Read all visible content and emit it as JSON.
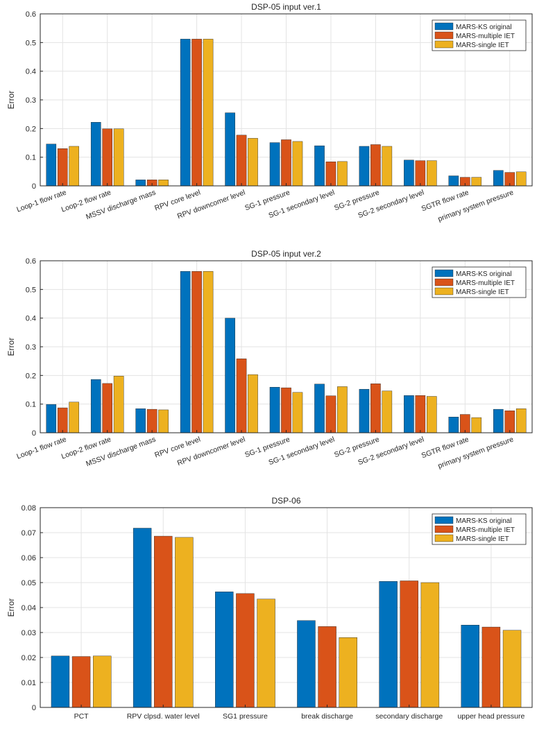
{
  "chart_data": [
    {
      "type": "bar",
      "title": "DSP-05 input ver.1",
      "xlabel": "",
      "ylabel": "Error",
      "ylim": [
        0,
        0.6
      ],
      "yticks": [
        "0",
        "0.1",
        "0.2",
        "0.3",
        "0.4",
        "0.5",
        "0.6"
      ],
      "grid": true,
      "legend_position": "top-right",
      "categories": [
        "Loop-1 flow rate",
        "Loop-2 flow rate",
        "MSSV discharge mass",
        "RPV core level",
        "RPV downcomer level",
        "SG-1 pressure",
        "SG-1 secondary level",
        "SG-2 pressure",
        "SG-2 secondary level",
        "SGTR flow rate",
        "primary system pressure"
      ],
      "series": [
        {
          "name": "MARS-KS original",
          "color": "#0072BD",
          "values": [
            0.146,
            0.222,
            0.021,
            0.512,
            0.255,
            0.151,
            0.14,
            0.138,
            0.09,
            0.035,
            0.054
          ]
        },
        {
          "name": "MARS-multiple IET",
          "color": "#D95319",
          "values": [
            0.13,
            0.199,
            0.021,
            0.512,
            0.177,
            0.161,
            0.084,
            0.144,
            0.088,
            0.03,
            0.047
          ]
        },
        {
          "name": "MARS-single IET",
          "color": "#EDB120",
          "values": [
            0.138,
            0.199,
            0.021,
            0.512,
            0.166,
            0.155,
            0.085,
            0.138,
            0.088,
            0.03,
            0.049
          ]
        }
      ]
    },
    {
      "type": "bar",
      "title": "DSP-05 input ver.2",
      "xlabel": "",
      "ylabel": "Error",
      "ylim": [
        0,
        0.6
      ],
      "yticks": [
        "0",
        "0.1",
        "0.2",
        "0.3",
        "0.4",
        "0.5",
        "0.6"
      ],
      "grid": true,
      "legend_position": "top-right",
      "categories": [
        "Loop-1 flow rate",
        "Loop-2 flow rate",
        "MSSV discharge mass",
        "RPV core level",
        "RPV downcomer level",
        "SG-1 pressure",
        "SG-1 secondary level",
        "SG-2 pressure",
        "SG-2 secondary level",
        "SGTR flow rate",
        "primary system pressure"
      ],
      "series": [
        {
          "name": "MARS-KS original",
          "color": "#0072BD",
          "values": [
            0.099,
            0.186,
            0.084,
            0.563,
            0.4,
            0.159,
            0.17,
            0.152,
            0.13,
            0.055,
            0.082
          ]
        },
        {
          "name": "MARS-multiple IET",
          "color": "#D95319",
          "values": [
            0.087,
            0.172,
            0.082,
            0.563,
            0.258,
            0.157,
            0.129,
            0.171,
            0.13,
            0.064,
            0.077
          ]
        },
        {
          "name": "MARS-single IET",
          "color": "#EDB120",
          "values": [
            0.107,
            0.198,
            0.08,
            0.563,
            0.203,
            0.141,
            0.161,
            0.146,
            0.127,
            0.053,
            0.084
          ]
        }
      ]
    },
    {
      "type": "bar",
      "title": "DSP-06",
      "xlabel": "",
      "ylabel": "Error",
      "ylim": [
        0,
        0.08
      ],
      "yticks": [
        "0",
        "0.01",
        "0.02",
        "0.03",
        "0.04",
        "0.05",
        "0.06",
        "0.07",
        "0.08"
      ],
      "grid": true,
      "legend_position": "top-right",
      "categories": [
        "PCT",
        "RPV clpsd. water level",
        "SG1 pressure",
        "break discharge",
        "secondary discharge",
        "upper head pressure"
      ],
      "series": [
        {
          "name": "MARS-KS original",
          "color": "#0072BD",
          "values": [
            0.0206,
            0.0718,
            0.0463,
            0.0348,
            0.0505,
            0.033
          ]
        },
        {
          "name": "MARS-multiple IET",
          "color": "#D95319",
          "values": [
            0.0204,
            0.0686,
            0.0456,
            0.0324,
            0.0507,
            0.0322
          ]
        },
        {
          "name": "MARS-single IET",
          "color": "#EDB120",
          "values": [
            0.0206,
            0.0681,
            0.0434,
            0.028,
            0.05,
            0.0309
          ]
        }
      ]
    }
  ]
}
